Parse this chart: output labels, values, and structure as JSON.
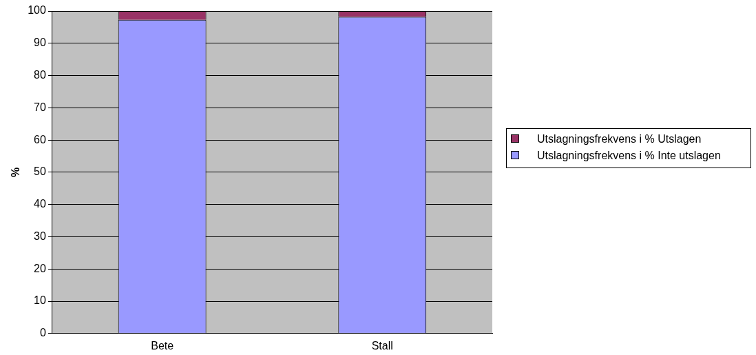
{
  "chart_data": {
    "type": "bar",
    "stacked": true,
    "ylabel": "%",
    "categories": [
      "Bete",
      "Stall"
    ],
    "series": [
      {
        "name": "Utslagningsfrekvens i % Inte utslagen",
        "color": "#9999ff",
        "values": [
          97.3,
          98.2
        ]
      },
      {
        "name": "Utslagningsfrekvens i % Utslagen",
        "color": "#993366",
        "values": [
          2.7,
          1.8
        ]
      }
    ],
    "ylim": [
      0,
      100
    ],
    "yticks": [
      0,
      10,
      20,
      30,
      40,
      50,
      60,
      70,
      80,
      90,
      100
    ],
    "grid": "y",
    "legend": "right"
  }
}
